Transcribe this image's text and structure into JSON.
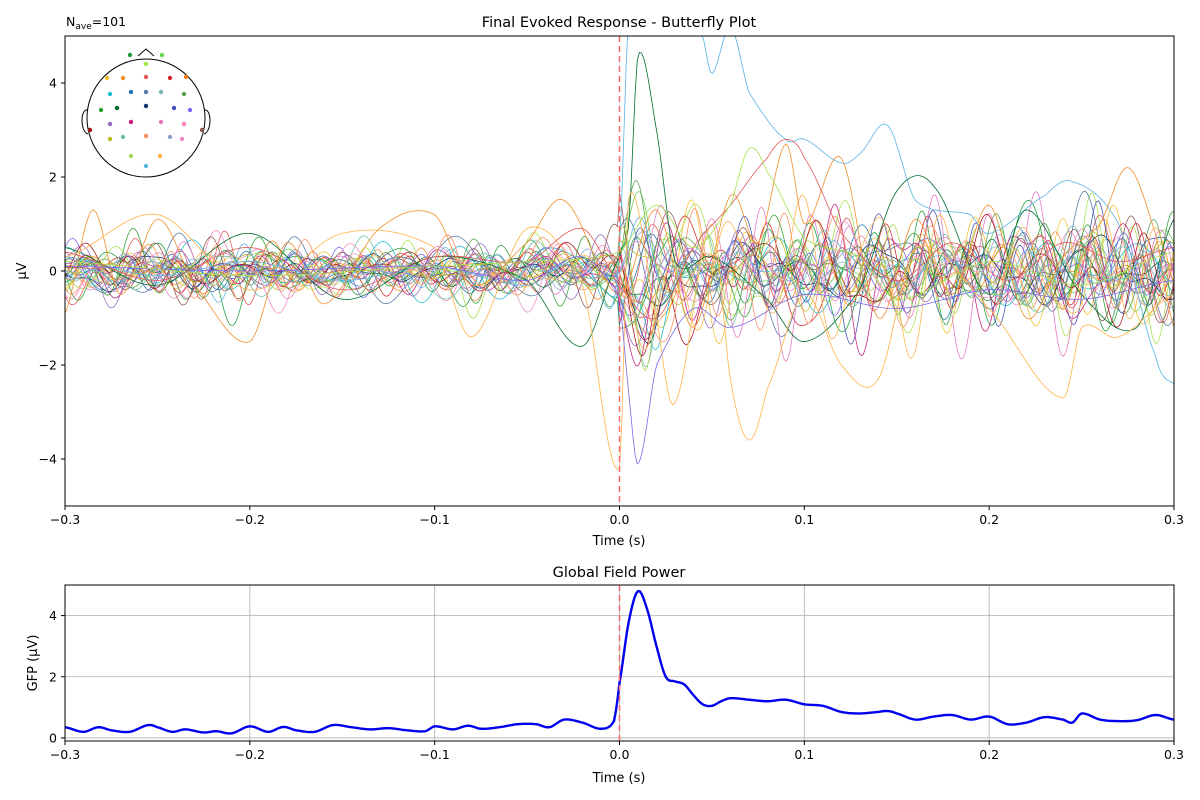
{
  "figure": {
    "n_ave_base": "N",
    "n_ave_sub": "ave",
    "n_ave_value": "=101"
  },
  "chart_data": [
    {
      "type": "line",
      "title": "Final Evoked Response - Butterfly Plot",
      "xlabel": "Time (s)",
      "ylabel": "µV",
      "xlim": [
        -0.3,
        0.3
      ],
      "ylim": [
        -5,
        5
      ],
      "xticks": [
        -0.3,
        -0.2,
        -0.1,
        0.0,
        0.1,
        0.2,
        0.3
      ],
      "xtick_labels": [
        "−0.3",
        "−0.2",
        "−0.1",
        "0.0",
        "0.1",
        "0.2",
        "0.3"
      ],
      "yticks": [
        -4,
        -2,
        0,
        2,
        4
      ],
      "ytick_labels": [
        "−4",
        "−2",
        "0",
        "2",
        "4"
      ],
      "grid": false,
      "stimulus_onset": 0.0,
      "stimulus_line_color": "#ff6b6b",
      "channel_count": 32,
      "channel_colors": [
        "#1b9e3e",
        "#66d44f",
        "#a6e24a",
        "#f2c12e",
        "#f28e2b",
        "#e15759",
        "#d62728",
        "#ff7f0e",
        "#17becf",
        "#1f77b4",
        "#4e79a7",
        "#76b7b2",
        "#59a14f",
        "#2ca02c",
        "#006d2c",
        "#08306b",
        "#3f51b5",
        "#7b68ee",
        "#9467bd",
        "#c51b7d",
        "#e377c2",
        "#f781bf",
        "#a50f15",
        "#8c564b",
        "#bcbd22",
        "#66c2a5",
        "#fc8d62",
        "#8da0cb",
        "#e78ac3",
        "#a6d854",
        "#ffb347",
        "#5ab4e5"
      ],
      "highlight_series": [
        {
          "name": "",
          "color": "#5ab4e5",
          "x": [
            -0.3,
            -0.25,
            -0.2,
            -0.15,
            -0.1,
            -0.05,
            -0.02,
            -0.005,
            0.0,
            0.005,
            0.02,
            0.035,
            0.045,
            0.05,
            0.06,
            0.07,
            0.09,
            0.1,
            0.12,
            0.13,
            0.145,
            0.16,
            0.19,
            0.2,
            0.23,
            0.245,
            0.27,
            0.29,
            0.3
          ],
          "y": [
            0.3,
            -0.1,
            0.2,
            -0.2,
            0.1,
            -0.3,
            0.3,
            -0.8,
            0.5,
            5.5,
            5.5,
            5.5,
            5.0,
            4.2,
            5.2,
            3.8,
            2.8,
            2.8,
            2.3,
            2.5,
            3.1,
            1.5,
            1.2,
            0.8,
            1.6,
            1.9,
            1.0,
            -1.8,
            -2.4
          ]
        },
        {
          "name": "",
          "color": "#006d2c",
          "x": [
            -0.3,
            -0.25,
            -0.2,
            -0.15,
            -0.1,
            -0.05,
            -0.02,
            0.0,
            0.005,
            0.01,
            0.02,
            0.03,
            0.05,
            0.08,
            0.1,
            0.13,
            0.15,
            0.17,
            0.2,
            0.22,
            0.25,
            0.28,
            0.3
          ],
          "y": [
            0.5,
            -0.3,
            0.8,
            -0.6,
            0.3,
            -0.2,
            -1.6,
            0.3,
            1.0,
            4.6,
            3.0,
            0.2,
            0.3,
            -0.6,
            -1.5,
            -0.4,
            1.7,
            1.8,
            -0.5,
            1.3,
            -0.5,
            -1.2,
            1.1
          ]
        },
        {
          "name": "",
          "color": "#f28e2b",
          "x": [
            -0.3,
            -0.285,
            -0.27,
            -0.25,
            -0.23,
            -0.2,
            -0.18,
            -0.16,
            -0.13,
            -0.1,
            -0.08,
            -0.05,
            -0.03,
            0.0,
            0.02,
            0.04,
            0.06,
            0.075,
            0.09,
            0.1,
            0.12,
            0.14,
            0.16,
            0.18,
            0.2,
            0.22,
            0.24,
            0.26,
            0.275,
            0.29,
            0.3
          ],
          "y": [
            -0.9,
            1.3,
            -0.5,
            1.1,
            -0.3,
            -1.5,
            0.6,
            -0.7,
            0.9,
            1.2,
            -0.3,
            0.6,
            1.5,
            -0.5,
            1.3,
            -1.2,
            1.6,
            0.6,
            2.7,
            1.0,
            2.4,
            -1.0,
            1.1,
            -0.5,
            1.4,
            -1.0,
            0.3,
            1.0,
            2.2,
            0.8,
            -1.2
          ]
        },
        {
          "name": "",
          "color": "#ffb347",
          "x": [
            -0.3,
            -0.25,
            -0.2,
            -0.15,
            -0.1,
            -0.08,
            -0.05,
            -0.02,
            0.0,
            0.005,
            0.02,
            0.03,
            0.05,
            0.06,
            0.07,
            0.08,
            0.1,
            0.12,
            0.14,
            0.16,
            0.2,
            0.24,
            0.25,
            0.27,
            0.3
          ],
          "y": [
            0.3,
            1.2,
            -0.4,
            0.8,
            0.5,
            -1.4,
            0.9,
            -0.3,
            -4.2,
            1.6,
            -1.0,
            -2.8,
            1.0,
            -2.3,
            -3.6,
            -2.5,
            -0.5,
            -2.0,
            -2.3,
            0.5,
            -0.8,
            -2.7,
            -1.2,
            -1.4,
            -0.5
          ]
        },
        {
          "name": "",
          "color": "#e15759",
          "x": [
            -0.3,
            -0.25,
            -0.2,
            -0.15,
            -0.1,
            -0.05,
            -0.02,
            0.0,
            0.02,
            0.04,
            0.06,
            0.08,
            0.09,
            0.1,
            0.12,
            0.15,
            0.18,
            0.21,
            0.24,
            0.27,
            0.3
          ],
          "y": [
            0.4,
            -0.2,
            0.5,
            -0.4,
            0.3,
            0.2,
            0.9,
            -0.3,
            -1.0,
            0.5,
            1.4,
            2.4,
            2.8,
            2.4,
            0.8,
            -0.2,
            0.6,
            -0.2,
            0.6,
            0.2,
            0.5
          ]
        },
        {
          "name": "",
          "color": "#7b68ee",
          "x": [
            -0.3,
            -0.2,
            -0.1,
            -0.05,
            -0.02,
            0.0,
            0.005,
            0.01,
            0.02,
            0.04,
            0.06,
            0.1,
            0.15,
            0.2,
            0.25,
            0.3
          ],
          "y": [
            0.1,
            0.0,
            0.1,
            -0.2,
            0.3,
            -0.6,
            -2.6,
            -4.1,
            -2.0,
            -0.8,
            -1.2,
            -0.5,
            -0.8,
            -0.4,
            -0.6,
            -0.2
          ]
        },
        {
          "name": "",
          "color": "#a6e24a",
          "x": [
            -0.3,
            -0.2,
            -0.1,
            -0.05,
            0.0,
            0.02,
            0.04,
            0.06,
            0.07,
            0.08,
            0.1,
            0.13,
            0.15,
            0.2,
            0.25,
            0.3
          ],
          "y": [
            0.2,
            -0.1,
            0.1,
            0.2,
            0.4,
            1.4,
            0.5,
            1.4,
            2.6,
            2.1,
            0.7,
            0.3,
            -0.6,
            0.2,
            -0.3,
            0.4
          ]
        }
      ]
    },
    {
      "type": "line",
      "title": "Global Field Power",
      "xlabel": "Time (s)",
      "ylabel": "GFP (µV)",
      "xlim": [
        -0.3,
        0.3
      ],
      "ylim": [
        -0.1,
        5.0
      ],
      "xticks": [
        -0.3,
        -0.2,
        -0.1,
        0.0,
        0.1,
        0.2,
        0.3
      ],
      "xtick_labels": [
        "−0.3",
        "−0.2",
        "−0.1",
        "0.0",
        "0.1",
        "0.2",
        "0.3"
      ],
      "yticks": [
        0,
        2,
        4
      ],
      "ytick_labels": [
        "0",
        "2",
        "4"
      ],
      "grid": true,
      "stimulus_onset": 0.0,
      "stimulus_line_color": "#ff6b6b",
      "series": [
        {
          "name": "",
          "color": "#0000ee",
          "x": [
            -0.3,
            -0.29,
            -0.282,
            -0.275,
            -0.265,
            -0.255,
            -0.25,
            -0.242,
            -0.235,
            -0.225,
            -0.218,
            -0.21,
            -0.2,
            -0.19,
            -0.182,
            -0.175,
            -0.165,
            -0.155,
            -0.145,
            -0.135,
            -0.125,
            -0.115,
            -0.105,
            -0.1,
            -0.09,
            -0.082,
            -0.075,
            -0.065,
            -0.055,
            -0.045,
            -0.038,
            -0.03,
            -0.02,
            -0.01,
            -0.003,
            0.0,
            0.005,
            0.01,
            0.015,
            0.02,
            0.025,
            0.03,
            0.035,
            0.04,
            0.045,
            0.05,
            0.055,
            0.06,
            0.07,
            0.08,
            0.09,
            0.1,
            0.11,
            0.12,
            0.13,
            0.14,
            0.145,
            0.15,
            0.16,
            0.17,
            0.18,
            0.19,
            0.2,
            0.21,
            0.22,
            0.23,
            0.24,
            0.245,
            0.25,
            0.26,
            0.27,
            0.28,
            0.29,
            0.3
          ],
          "y": [
            0.35,
            0.2,
            0.35,
            0.25,
            0.2,
            0.42,
            0.35,
            0.2,
            0.28,
            0.18,
            0.22,
            0.15,
            0.38,
            0.2,
            0.36,
            0.25,
            0.2,
            0.42,
            0.35,
            0.28,
            0.32,
            0.25,
            0.22,
            0.38,
            0.28,
            0.4,
            0.3,
            0.35,
            0.45,
            0.45,
            0.35,
            0.6,
            0.5,
            0.3,
            0.55,
            1.8,
            3.8,
            4.8,
            4.2,
            3.0,
            2.0,
            1.85,
            1.75,
            1.4,
            1.1,
            1.05,
            1.2,
            1.3,
            1.25,
            1.2,
            1.25,
            1.1,
            1.05,
            0.85,
            0.8,
            0.85,
            0.88,
            0.8,
            0.6,
            0.7,
            0.75,
            0.6,
            0.7,
            0.45,
            0.5,
            0.68,
            0.6,
            0.5,
            0.8,
            0.6,
            0.55,
            0.58,
            0.75,
            0.6
          ]
        }
      ]
    }
  ]
}
